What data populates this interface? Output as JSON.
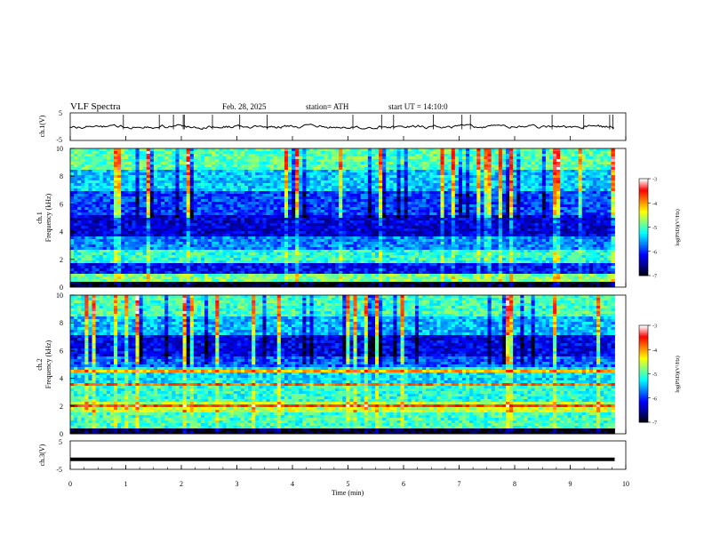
{
  "header": {
    "title": "VLF Spectra",
    "date": "Feb. 28, 2025",
    "station": "station= ATH",
    "start": "start UT =  14:10:0"
  },
  "colors": {
    "colormap": [
      "#000000",
      "#00008f",
      "#0000ff",
      "#0080ff",
      "#00ffff",
      "#80ff80",
      "#ffff00",
      "#ff8000",
      "#ff0000",
      "#ffffff"
    ],
    "trace": "#000000",
    "axis": "#000000"
  },
  "chart_data": [
    {
      "type": "line",
      "name": "ch1-waveform",
      "ylabel": "ch.1(V)",
      "ylim": [
        -5,
        5
      ],
      "yticks": [
        "5",
        "-5"
      ],
      "xlim": [
        0,
        10
      ],
      "level": 0
    },
    {
      "type": "heatmap",
      "name": "ch1-spectrogram",
      "ylabel": "ch.1",
      "ylabel2": "Frequency (kHz)",
      "ylim": [
        0,
        10
      ],
      "yticks": [
        "0",
        "2",
        "4",
        "6",
        "8",
        "10"
      ],
      "xlim": [
        0,
        10
      ],
      "data_end": 9.8,
      "colorbar": {
        "label": "log(PSD)(V²/Hz)",
        "range": [
          -7,
          -3
        ],
        "ticks": [
          "-3",
          "-4",
          "-5",
          "-6",
          "-7"
        ]
      },
      "bands": [
        {
          "f": [
            0.0,
            0.35
          ],
          "level": 0.02
        },
        {
          "f": [
            0.35,
            0.9
          ],
          "level": 0.55
        },
        {
          "f": [
            0.9,
            1.8
          ],
          "level": 0.22
        },
        {
          "f": [
            1.8,
            2.6
          ],
          "level": 0.48
        },
        {
          "f": [
            2.6,
            3.6
          ],
          "level": 0.33
        },
        {
          "f": [
            3.6,
            5.2
          ],
          "level": 0.18
        },
        {
          "f": [
            5.2,
            7.0
          ],
          "level": 0.28
        },
        {
          "f": [
            7.0,
            8.5
          ],
          "level": 0.4
        },
        {
          "f": [
            8.5,
            10.0
          ],
          "level": 0.52
        }
      ]
    },
    {
      "type": "heatmap",
      "name": "ch2-spectrogram",
      "ylabel": "ch.2",
      "ylabel2": "Frequency (kHz)",
      "ylim": [
        0,
        10
      ],
      "yticks": [
        "0",
        "2",
        "4",
        "6",
        "8",
        "10"
      ],
      "xlim": [
        0,
        10
      ],
      "data_end": 9.8,
      "colorbar": {
        "label": "log(PSD)(V²/Hz)",
        "range": [
          -7,
          -3
        ],
        "ticks": [
          "-3",
          "-4",
          "-5",
          "-6",
          "-7"
        ]
      },
      "bands": [
        {
          "f": [
            0.0,
            0.3
          ],
          "level": 0.02
        },
        {
          "f": [
            0.3,
            1.6
          ],
          "level": 0.5
        },
        {
          "f": [
            1.6,
            2.4
          ],
          "level": 0.62
        },
        {
          "f": [
            2.4,
            3.4
          ],
          "level": 0.48
        },
        {
          "f": [
            3.4,
            4.8
          ],
          "level": 0.42
        },
        {
          "f": [
            4.8,
            5.5
          ],
          "level": 0.3
        },
        {
          "f": [
            5.5,
            7.2
          ],
          "level": 0.2
        },
        {
          "f": [
            7.2,
            8.5
          ],
          "level": 0.38
        },
        {
          "f": [
            8.5,
            10.0
          ],
          "level": 0.5
        }
      ],
      "lines": [
        {
          "f": 2.0,
          "level": 0.85
        },
        {
          "f": 3.5,
          "level": 0.78
        },
        {
          "f": 4.5,
          "level": 0.72
        }
      ]
    },
    {
      "type": "line",
      "name": "ch3-waveform",
      "ylabel": "ch.3(V)",
      "ylim": [
        -5,
        5
      ],
      "yticks": [
        "5",
        "-5"
      ],
      "xlim": [
        0,
        10
      ],
      "level": -1.5
    }
  ],
  "xaxis": {
    "label": "Time (min)",
    "ticks": [
      "0",
      "1",
      "2",
      "3",
      "4",
      "5",
      "6",
      "7",
      "8",
      "9",
      "10"
    ]
  }
}
